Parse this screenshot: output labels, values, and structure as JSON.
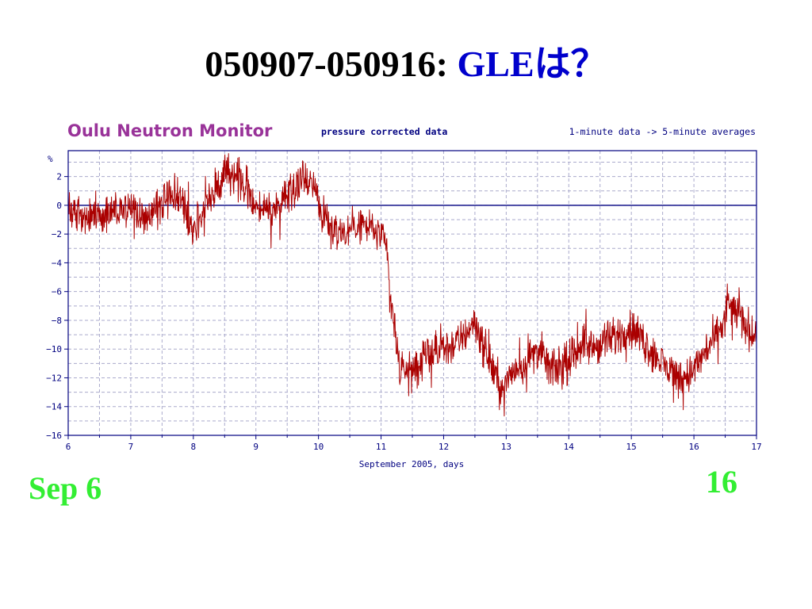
{
  "slide": {
    "title_main": "050907-050916: ",
    "title_accent": "GLEは？",
    "label_start": "Sep 6",
    "label_end": "16"
  },
  "colors": {
    "title_text": "#000000",
    "title_accent": "#0000cc",
    "monitor_title": "#993399",
    "axis_and_text": "#000080",
    "grid": "#aaaacc",
    "data_line": "#aa0000",
    "corner_labels": "#33ee33"
  },
  "chart_data": {
    "type": "line",
    "title": "Oulu Neutron Monitor",
    "subtitle": "pressure corrected data",
    "note": "1-minute data -> 5-minute averages",
    "xlabel": "September 2005, days",
    "ylabel": "%",
    "xlim": [
      6,
      17
    ],
    "ylim": [
      -16,
      3.8
    ],
    "xticks": [
      6,
      7,
      8,
      9,
      10,
      11,
      12,
      13,
      14,
      15,
      16,
      17
    ],
    "yticks": [
      2,
      0,
      -2,
      -4,
      -6,
      -8,
      -10,
      -12,
      -14,
      -16
    ],
    "grid": true,
    "reference_line_y": 0,
    "series": [
      {
        "values_description_free": true,
        "x": [
          6.0,
          6.25,
          6.5,
          6.75,
          7.0,
          7.25,
          7.5,
          7.75,
          8.0,
          8.1,
          8.25,
          8.5,
          8.65,
          8.8,
          9.0,
          9.25,
          9.5,
          9.75,
          9.95,
          10.05,
          10.2,
          10.4,
          10.6,
          10.8,
          11.0,
          11.1,
          11.15,
          11.22,
          11.3,
          11.5,
          11.75,
          12.0,
          12.25,
          12.5,
          12.65,
          12.8,
          12.95,
          13.1,
          13.3,
          13.5,
          13.75,
          14.0,
          14.2,
          14.4,
          14.6,
          14.8,
          15.0,
          15.2,
          15.4,
          15.6,
          15.8,
          16.0,
          16.2,
          16.4,
          16.55,
          16.7,
          16.85,
          17.0
        ],
        "y": [
          0.0,
          -0.8,
          -0.8,
          0.0,
          -0.5,
          -1.0,
          0.3,
          0.8,
          -1.5,
          -1.0,
          0.5,
          2.0,
          2.3,
          1.5,
          0.0,
          -0.5,
          1.0,
          2.0,
          1.5,
          -0.8,
          -1.5,
          -2.0,
          -1.2,
          -1.5,
          -2.0,
          -3.5,
          -6.5,
          -8.5,
          -11.5,
          -11.5,
          -10.5,
          -10.0,
          -9.5,
          -8.0,
          -10.0,
          -11.5,
          -13.0,
          -11.5,
          -11.0,
          -10.0,
          -11.5,
          -11.0,
          -9.5,
          -10.0,
          -9.5,
          -9.0,
          -8.5,
          -9.5,
          -10.5,
          -11.5,
          -12.0,
          -11.5,
          -10.0,
          -9.0,
          -7.0,
          -7.5,
          -8.5,
          -9.0
        ]
      }
    ]
  }
}
